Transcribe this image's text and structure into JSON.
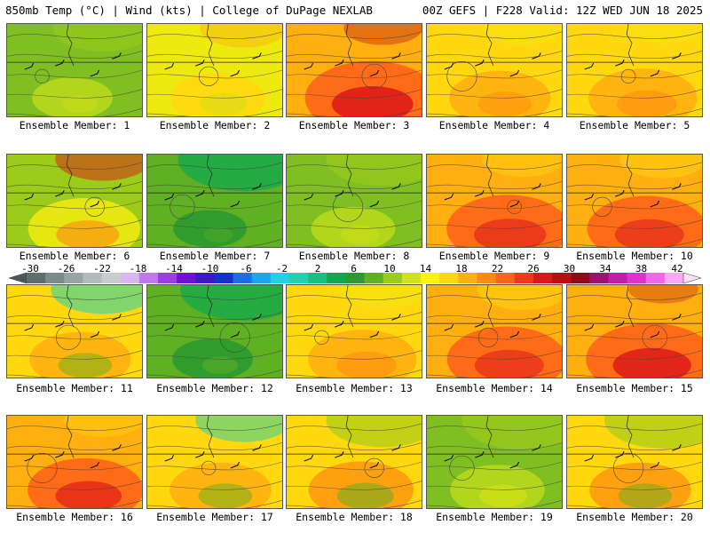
{
  "header": {
    "left": "850mb Temp (°C) | Wind (kts) | College of DuPage NEXLAB",
    "right": "00Z GEFS | F228 Valid: 12Z WED JUN 18 2025"
  },
  "members": [
    {
      "label": "Ensemble Member: 1",
      "scheme": "green-yellow",
      "hot": 0.15,
      "cool": 0.55
    },
    {
      "label": "Ensemble Member: 2",
      "scheme": "yellow",
      "hot": 0.35,
      "cool": 0.4
    },
    {
      "label": "Ensemble Member: 3",
      "scheme": "red-core",
      "hot": 0.9,
      "cool": 0.3
    },
    {
      "label": "Ensemble Member: 4",
      "scheme": "orange",
      "hot": 0.45,
      "cool": 0.3
    },
    {
      "label": "Ensemble Member: 5",
      "scheme": "orange",
      "hot": 0.55,
      "cool": 0.25
    },
    {
      "label": "Ensemble Member: 6",
      "scheme": "green-red",
      "hot": 0.6,
      "cool": 0.5
    },
    {
      "label": "Ensemble Member: 7",
      "scheme": "green",
      "hot": 0.05,
      "cool": 0.9
    },
    {
      "label": "Ensemble Member: 8",
      "scheme": "green-yellow",
      "hot": 0.2,
      "cool": 0.7
    },
    {
      "label": "Ensemble Member: 9",
      "scheme": "red",
      "hot": 0.75,
      "cool": 0.35
    },
    {
      "label": "Ensemble Member: 10",
      "scheme": "red",
      "hot": 0.7,
      "cool": 0.4
    },
    {
      "label": "Ensemble Member: 11",
      "scheme": "orange-teal",
      "hot": 0.45,
      "cool": 0.6
    },
    {
      "label": "Ensemble Member: 12",
      "scheme": "green",
      "hot": 0.15,
      "cool": 0.85
    },
    {
      "label": "Ensemble Member: 13",
      "scheme": "orange",
      "hot": 0.55,
      "cool": 0.4
    },
    {
      "label": "Ensemble Member: 14",
      "scheme": "red",
      "hot": 0.7,
      "cool": 0.45
    },
    {
      "label": "Ensemble Member: 15",
      "scheme": "red-core",
      "hot": 0.85,
      "cool": 0.2
    },
    {
      "label": "Ensemble Member: 16",
      "scheme": "orange-red",
      "hot": 0.65,
      "cool": 0.3
    },
    {
      "label": "Ensemble Member: 17",
      "scheme": "orange-teal",
      "hot": 0.45,
      "cool": 0.5
    },
    {
      "label": "Ensemble Member: 18",
      "scheme": "orange-green",
      "hot": 0.5,
      "cool": 0.7
    },
    {
      "label": "Ensemble Member: 19",
      "scheme": "green-yellow",
      "hot": 0.35,
      "cool": 0.8
    },
    {
      "label": "Ensemble Member: 20",
      "scheme": "orange-green",
      "hot": 0.45,
      "cool": 0.75
    }
  ],
  "colorbar": {
    "labels": [
      "-30",
      "-26",
      "-22",
      "-18",
      "-14",
      "-10",
      "-6",
      "-2",
      "2",
      "6",
      "10",
      "14",
      "18",
      "22",
      "26",
      "30",
      "34",
      "38",
      "42"
    ],
    "colors": [
      "#5e6e6e",
      "#7c8a8a",
      "#98a4a4",
      "#b2baba",
      "#c8cccc",
      "#d8b6f0",
      "#c078f0",
      "#9a3ee6",
      "#6f10d8",
      "#3a18c8",
      "#1430d0",
      "#1870e8",
      "#1aa6f0",
      "#20d2e6",
      "#1ed2b0",
      "#16c07e",
      "#10a850",
      "#2c9a30",
      "#5fb022",
      "#9ccc1a",
      "#cfe21a",
      "#fbf20e",
      "#ffd810",
      "#ffb010",
      "#ff8a10",
      "#ff6418",
      "#f2381a",
      "#dc1818",
      "#b80e14",
      "#920a18",
      "#a01070",
      "#c41ca8",
      "#e42ed0",
      "#f266e8",
      "#f8a8f4"
    ]
  }
}
